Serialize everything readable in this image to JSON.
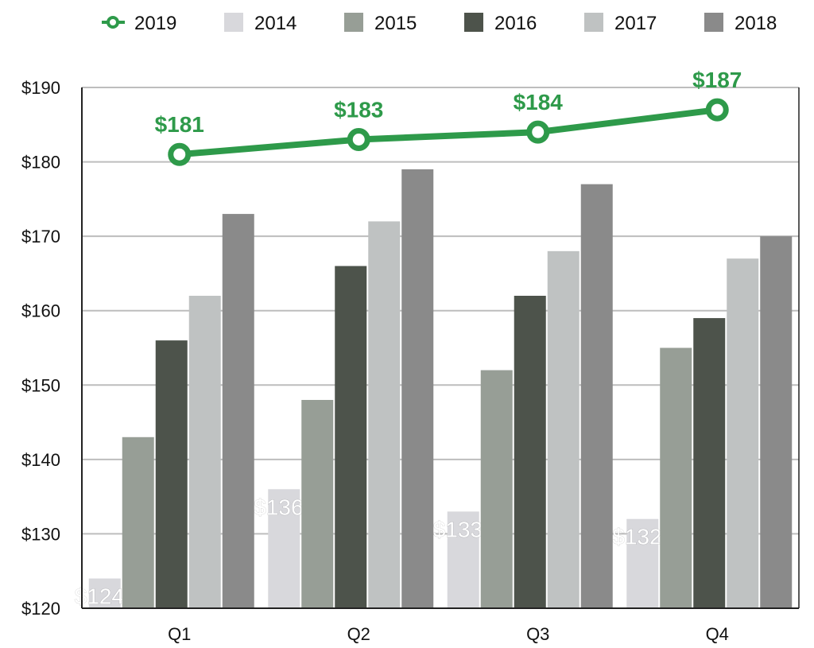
{
  "chart_data": {
    "type": "bar",
    "categories": [
      "Q1",
      "Q2",
      "Q3",
      "Q4"
    ],
    "ylim": [
      120,
      190
    ],
    "yticks": [
      120,
      130,
      140,
      150,
      160,
      170,
      180,
      190
    ],
    "ytick_labels": [
      "$120",
      "$130",
      "$140",
      "$150",
      "$160",
      "$170",
      "$180",
      "$190"
    ],
    "grid": true,
    "legend_position": "top",
    "series": [
      {
        "name": "2014",
        "type": "bar",
        "color": "#d8d8dc",
        "values": [
          124,
          136,
          133,
          132
        ],
        "labels": [
          "$124",
          "$136",
          "$133",
          "$132"
        ]
      },
      {
        "name": "2015",
        "type": "bar",
        "color": "#979e96",
        "values": [
          143,
          148,
          152,
          155
        ]
      },
      {
        "name": "2016",
        "type": "bar",
        "color": "#4d534b",
        "values": [
          156,
          166,
          162,
          159
        ]
      },
      {
        "name": "2017",
        "type": "bar",
        "color": "#bfc2c2",
        "values": [
          162,
          172,
          168,
          167
        ]
      },
      {
        "name": "2018",
        "type": "bar",
        "color": "#8a8a8a",
        "values": [
          173,
          179,
          177,
          170
        ]
      }
    ],
    "line_series": {
      "name": "2019",
      "type": "line",
      "color": "#2e9a4a",
      "values": [
        181,
        183,
        184,
        187
      ],
      "labels": [
        "$181",
        "$183",
        "$184",
        "$187"
      ]
    },
    "legend_order": [
      "2019",
      "2014",
      "2015",
      "2016",
      "2017",
      "2018"
    ]
  }
}
